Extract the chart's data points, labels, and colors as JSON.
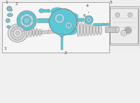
{
  "bg_color": "#f0f0f0",
  "part_color_blue": "#5bc8d8",
  "part_color_outline": "#888888",
  "part_color_dark": "#444444",
  "upper_bg": "#efefef",
  "lower_border": "#999999",
  "figsize": [
    2.0,
    1.47
  ],
  "dpi": 100
}
